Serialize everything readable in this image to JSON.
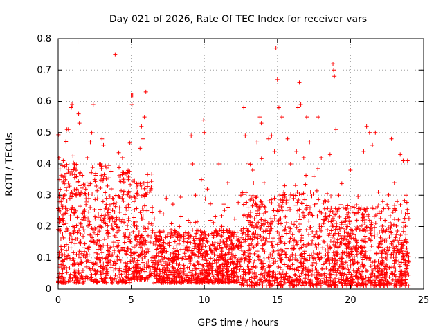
{
  "chart_data": {
    "type": "scatter",
    "title": "Day 021 of 2026, Rate Of TEC Index for receiver vars",
    "xlabel": "GPS time / hours",
    "ylabel": "ROTI / TECUs",
    "xlim": [
      0,
      25
    ],
    "ylim": [
      0,
      0.8
    ],
    "xticks": [
      0,
      5,
      10,
      15,
      20,
      25
    ],
    "yticks": [
      0,
      0.1,
      0.2,
      0.3,
      0.4,
      0.5,
      0.6,
      0.7,
      0.8
    ],
    "xtick_labels": [
      "0",
      "5",
      "10",
      "15",
      "20",
      "25"
    ],
    "ytick_labels": [
      "0",
      "0.1",
      "0.2",
      "0.3",
      "0.4",
      "0.5",
      "0.6",
      "0.7",
      "0.8"
    ],
    "grid": true,
    "marker": "+",
    "color": "#ff0000",
    "series": [
      {
        "name": "ROTI",
        "points": [
          [
            0.05,
            0.42
          ],
          [
            0.1,
            0.35
          ],
          [
            0.2,
            0.28
          ],
          [
            0.3,
            0.22
          ],
          [
            0.35,
            0.41
          ],
          [
            0.4,
            0.3
          ],
          [
            0.5,
            0.26
          ],
          [
            0.55,
            0.37
          ],
          [
            0.6,
            0.51
          ],
          [
            0.7,
            0.51
          ],
          [
            0.8,
            0.29
          ],
          [
            0.9,
            0.58
          ],
          [
            0.95,
            0.59
          ],
          [
            1.0,
            0.2
          ],
          [
            1.1,
            0.39
          ],
          [
            1.2,
            0.25
          ],
          [
            1.25,
            0.36
          ],
          [
            1.3,
            0.18
          ],
          [
            1.35,
            0.79
          ],
          [
            1.4,
            0.56
          ],
          [
            1.45,
            0.53
          ],
          [
            1.5,
            0.1
          ],
          [
            1.6,
            0.04
          ],
          [
            1.65,
            0.02
          ],
          [
            1.7,
            0.06
          ],
          [
            1.8,
            0.12
          ],
          [
            1.9,
            0.27
          ],
          [
            2.0,
            0.42
          ],
          [
            2.1,
            0.33
          ],
          [
            2.2,
            0.47
          ],
          [
            2.3,
            0.5
          ],
          [
            2.4,
            0.59
          ],
          [
            2.5,
            0.35
          ],
          [
            2.6,
            0.05
          ],
          [
            2.7,
            0.1
          ],
          [
            2.8,
            0.2
          ],
          [
            2.9,
            0.4
          ],
          [
            3.0,
            0.48
          ],
          [
            3.1,
            0.46
          ],
          [
            3.2,
            0.36
          ],
          [
            3.3,
            0.26
          ],
          [
            3.4,
            0.18
          ],
          [
            3.5,
            0.12
          ],
          [
            3.6,
            0.08
          ],
          [
            3.7,
            0.11
          ],
          [
            3.8,
            0.15
          ],
          [
            3.9,
            0.75
          ],
          [
            4.0,
            0.2
          ],
          [
            4.2,
            0.26
          ],
          [
            4.4,
            0.42
          ],
          [
            4.6,
            0.37
          ],
          [
            4.8,
            0.27
          ],
          [
            5.0,
            0.62
          ],
          [
            5.05,
            0.59
          ],
          [
            5.1,
            0.62
          ],
          [
            5.2,
            0.28
          ],
          [
            5.3,
            0.17
          ],
          [
            5.4,
            0.08
          ],
          [
            5.5,
            0.04
          ],
          [
            5.6,
            0.45
          ],
          [
            5.7,
            0.52
          ],
          [
            5.8,
            0.48
          ],
          [
            5.9,
            0.55
          ],
          [
            6.0,
            0.63
          ],
          [
            6.1,
            0.31
          ],
          [
            6.2,
            0.21
          ],
          [
            6.3,
            0.15
          ],
          [
            6.4,
            0.1
          ],
          [
            6.6,
            0.07
          ],
          [
            6.8,
            0.13
          ],
          [
            7.0,
            0.18
          ],
          [
            7.2,
            0.24
          ],
          [
            7.4,
            0.29
          ],
          [
            7.6,
            0.14
          ],
          [
            7.8,
            0.09
          ],
          [
            8.0,
            0.12
          ],
          [
            8.3,
            0.2
          ],
          [
            8.6,
            0.16
          ],
          [
            8.9,
            0.22
          ],
          [
            9.1,
            0.49
          ],
          [
            9.2,
            0.4
          ],
          [
            9.4,
            0.3
          ],
          [
            9.6,
            0.14
          ],
          [
            9.8,
            0.35
          ],
          [
            9.95,
            0.54
          ],
          [
            10.0,
            0.5
          ],
          [
            10.2,
            0.32
          ],
          [
            10.4,
            0.22
          ],
          [
            10.7,
            0.13
          ],
          [
            11.0,
            0.4
          ],
          [
            11.3,
            0.18
          ],
          [
            11.6,
            0.34
          ],
          [
            11.9,
            0.18
          ],
          [
            12.2,
            0.14
          ],
          [
            12.5,
            0.3
          ],
          [
            12.7,
            0.58
          ],
          [
            12.8,
            0.49
          ],
          [
            13.0,
            0.26
          ],
          [
            13.3,
            0.38
          ],
          [
            13.6,
            0.47
          ],
          [
            13.8,
            0.55
          ],
          [
            13.9,
            0.53
          ],
          [
            14.1,
            0.34
          ],
          [
            14.4,
            0.48
          ],
          [
            14.6,
            0.49
          ],
          [
            14.8,
            0.44
          ],
          [
            14.9,
            0.77
          ],
          [
            15.0,
            0.67
          ],
          [
            15.1,
            0.58
          ],
          [
            15.3,
            0.55
          ],
          [
            15.5,
            0.33
          ],
          [
            15.7,
            0.48
          ],
          [
            15.9,
            0.4
          ],
          [
            16.1,
            0.3
          ],
          [
            16.3,
            0.44
          ],
          [
            16.4,
            0.58
          ],
          [
            16.5,
            0.66
          ],
          [
            16.6,
            0.59
          ],
          [
            16.8,
            0.42
          ],
          [
            17.0,
            0.55
          ],
          [
            17.2,
            0.47
          ],
          [
            17.5,
            0.36
          ],
          [
            17.8,
            0.55
          ],
          [
            18.0,
            0.42
          ],
          [
            18.3,
            0.28
          ],
          [
            18.6,
            0.43
          ],
          [
            18.8,
            0.72
          ],
          [
            18.85,
            0.7
          ],
          [
            18.9,
            0.68
          ],
          [
            19.0,
            0.51
          ],
          [
            19.2,
            0.3
          ],
          [
            19.5,
            0.26
          ],
          [
            19.8,
            0.2
          ],
          [
            20.0,
            0.38
          ],
          [
            20.3,
            0.24
          ],
          [
            20.6,
            0.19
          ],
          [
            20.9,
            0.44
          ],
          [
            21.1,
            0.52
          ],
          [
            21.3,
            0.5
          ],
          [
            21.5,
            0.46
          ],
          [
            21.7,
            0.5
          ],
          [
            21.9,
            0.31
          ],
          [
            22.2,
            0.28
          ],
          [
            22.5,
            0.27
          ],
          [
            22.8,
            0.48
          ],
          [
            23.0,
            0.34
          ],
          [
            23.2,
            0.28
          ],
          [
            23.4,
            0.43
          ],
          [
            23.6,
            0.41
          ],
          [
            23.8,
            0.3
          ],
          [
            23.9,
            0.41
          ]
        ]
      }
    ],
    "bands": [
      {
        "x0": 0.0,
        "x1": 5.0,
        "floor": 0.02,
        "mid": 0.22,
        "spread": 0.16
      },
      {
        "x0": 5.0,
        "x1": 6.5,
        "floor": 0.03,
        "mid": 0.18,
        "spread": 0.14
      },
      {
        "x0": 6.5,
        "x1": 12.5,
        "floor": 0.02,
        "mid": 0.08,
        "spread": 0.09
      },
      {
        "x0": 12.5,
        "x1": 18.5,
        "floor": 0.01,
        "mid": 0.14,
        "spread": 0.16
      },
      {
        "x0": 18.5,
        "x1": 24.0,
        "floor": 0.01,
        "mid": 0.12,
        "spread": 0.14
      }
    ],
    "density_points": 3200
  }
}
